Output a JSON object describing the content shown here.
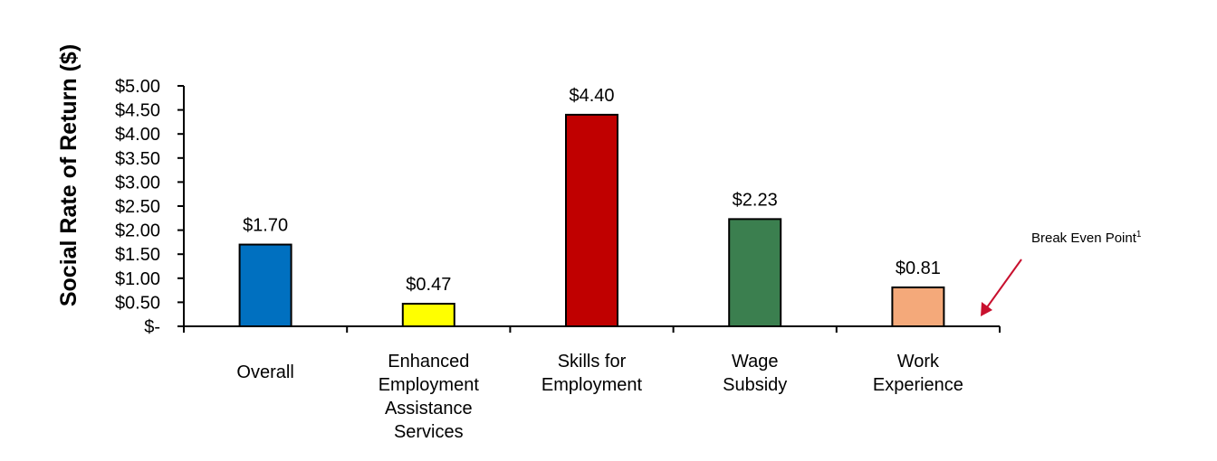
{
  "chart_data": {
    "type": "bar",
    "title": "",
    "xlabel": "",
    "ylabel": "Social Rate of Return ($)",
    "ylim": [
      0,
      5
    ],
    "yticks": [
      0,
      0.5,
      1,
      1.5,
      2,
      2.5,
      3,
      3.5,
      4,
      4.5,
      5
    ],
    "ytick_labels": [
      "$-",
      "$0.50",
      "$1.00",
      "$1.50",
      "$2.00",
      "$2.50",
      "$3.00",
      "$3.50",
      "$4.00",
      "$4.50",
      "$5.00"
    ],
    "categories": [
      [
        "Overall"
      ],
      [
        "Enhanced",
        "Employment",
        "Assistance",
        "Services"
      ],
      [
        "Skills for",
        "Employment"
      ],
      [
        "Wage",
        "Subsidy"
      ],
      [
        "Work",
        "Experience"
      ]
    ],
    "values": [
      1.7,
      0.47,
      4.4,
      2.23,
      0.81
    ],
    "data_labels": [
      "$1.70",
      "$0.47",
      "$4.40",
      "$2.23",
      "$0.81"
    ],
    "colors": [
      "#0070C0",
      "#FFFF00",
      "#C00000",
      "#3B7F4F",
      "#F4A97A"
    ],
    "grid": false,
    "annotation": {
      "text": "Break Even Point",
      "superscript": "1",
      "color": "#C8102E"
    }
  }
}
